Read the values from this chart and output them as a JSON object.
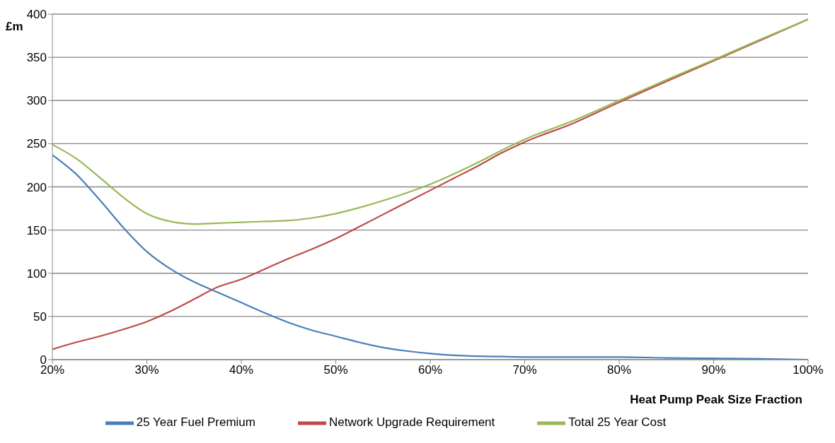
{
  "chart_data": {
    "type": "line",
    "xlabel": "Heat Pump Peak Size Fraction",
    "ylabel": "£m",
    "x": [
      20,
      22.5,
      25,
      27.5,
      30,
      32.5,
      35,
      37.5,
      40,
      42.5,
      45,
      47.5,
      50,
      52.5,
      55,
      57.5,
      60,
      62.5,
      65,
      67.5,
      70,
      75,
      80,
      85,
      90,
      95,
      100
    ],
    "series": [
      {
        "name": "25 Year Fuel Premium",
        "color": "#4a7ebb",
        "values": [
          237,
          215,
          185,
          153,
          125,
          105,
          90,
          78,
          66,
          54,
          43,
          34,
          27,
          20,
          14,
          10,
          7,
          5,
          4,
          3.5,
          3,
          3,
          3,
          2,
          1.5,
          1,
          0
        ]
      },
      {
        "name": "Network Upgrade Requirement",
        "color": "#be4b48",
        "values": [
          12,
          20,
          27,
          35,
          44,
          56,
          70,
          84,
          93,
          105,
          117,
          128,
          140,
          154,
          168,
          182,
          196,
          210,
          224,
          239,
          252,
          273,
          298,
          322,
          346,
          370,
          394
        ]
      },
      {
        "name": "Total 25 Year Cost",
        "color": "#98b954",
        "values": [
          249,
          233,
          211,
          188,
          169,
          160,
          157,
          158,
          159,
          160,
          161,
          164,
          169,
          176,
          184,
          193,
          203,
          215,
          228,
          242,
          255,
          276,
          300,
          324,
          347,
          371,
          394
        ]
      }
    ],
    "xlim": [
      20,
      100
    ],
    "xticks": [
      {
        "value": 20,
        "label": "20%"
      },
      {
        "value": 30,
        "label": "30%"
      },
      {
        "value": 40,
        "label": "40%"
      },
      {
        "value": 50,
        "label": "50%"
      },
      {
        "value": 60,
        "label": "60%"
      },
      {
        "value": 70,
        "label": "70%"
      },
      {
        "value": 80,
        "label": "80%"
      },
      {
        "value": 90,
        "label": "90%"
      },
      {
        "value": 100,
        "label": "100%"
      }
    ],
    "ylim": [
      0,
      400
    ],
    "yticks": [
      0,
      50,
      100,
      150,
      200,
      250,
      300,
      350,
      400
    ],
    "grid": "y",
    "legend": "bottom",
    "marker": "none",
    "line_style": "solid"
  }
}
